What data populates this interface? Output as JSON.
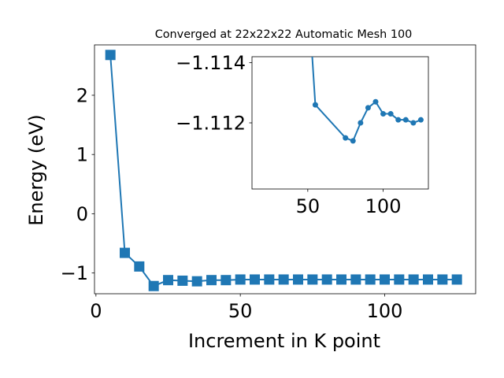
{
  "chart_data": [
    {
      "type": "line",
      "title": "Converged at 22x22x22 Automatic Mesh 100",
      "xlabel": "Increment in K point",
      "ylabel": "Energy (eV)",
      "xlim": [
        -0.5,
        131.5
      ],
      "ylim": [
        -1.35,
        2.85
      ],
      "xticks": [
        0,
        50,
        100
      ],
      "xtick_labels": [
        "0",
        "50",
        "100"
      ],
      "yticks": [
        -1,
        0,
        1,
        2
      ],
      "ytick_labels": [
        "−1",
        "0",
        "1",
        "2"
      ],
      "marker": "square",
      "color": "#1f77b4",
      "x": [
        5,
        10,
        15,
        20,
        25,
        30,
        35,
        40,
        45,
        50,
        55,
        60,
        65,
        70,
        75,
        80,
        85,
        90,
        95,
        100,
        105,
        110,
        115,
        120,
        125
      ],
      "y": [
        2.68,
        -0.66,
        -0.89,
        -1.22,
        -1.12,
        -1.13,
        -1.14,
        -1.12,
        -1.12,
        -1.11,
        -1.11,
        -1.11,
        -1.11,
        -1.11,
        -1.11,
        -1.11,
        -1.11,
        -1.11,
        -1.11,
        -1.11,
        -1.11,
        -1.11,
        -1.11,
        -1.11,
        -1.11
      ]
    },
    {
      "type": "line",
      "role": "inset",
      "xlim": [
        13,
        130
      ],
      "ylim": [
        -1.1098,
        -1.1142
      ],
      "xticks": [
        50,
        100
      ],
      "xtick_labels": [
        "50",
        "100"
      ],
      "yticks": [
        -1.114,
        -1.112
      ],
      "ytick_labels": [
        "−1.114",
        "−1.112"
      ],
      "marker": "circle",
      "color": "#1f77b4",
      "x": [
        50,
        55,
        75,
        80,
        85,
        90,
        95,
        100,
        105,
        110,
        115,
        120,
        125
      ],
      "y": [
        -1.1165,
        -1.1126,
        -1.1115,
        -1.1114,
        -1.112,
        -1.1125,
        -1.1127,
        -1.1123,
        -1.1123,
        -1.1121,
        -1.1121,
        -1.112,
        -1.1121
      ]
    }
  ]
}
